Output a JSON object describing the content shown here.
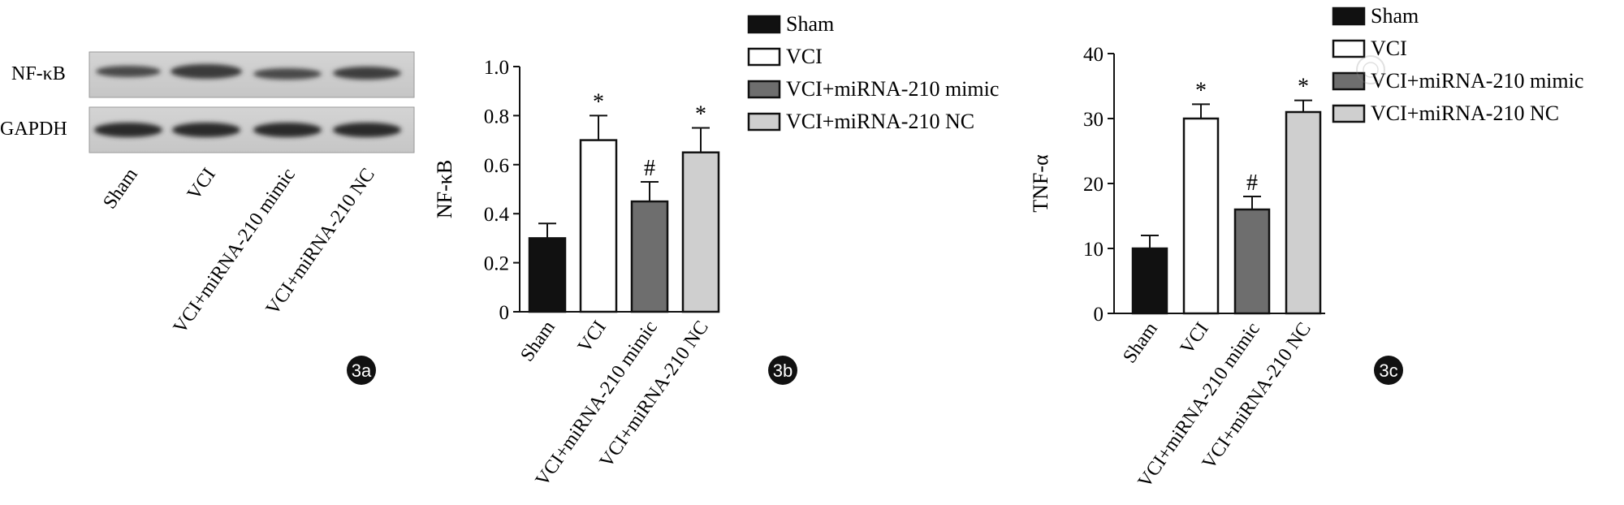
{
  "panel_a": {
    "badge": "3a",
    "rows": [
      "NF-κB",
      "GAPDH"
    ],
    "lanes": [
      "Sham",
      "VCI",
      "VCI+miRNA-210 mimic",
      "VCI+miRNA-210 NC"
    ]
  },
  "legend": {
    "entries": [
      {
        "name": "Sham",
        "fill": "#111111"
      },
      {
        "name": "VCI",
        "fill": "#ffffff"
      },
      {
        "name": "VCI+miRNA-210 mimic",
        "fill": "#6e6e6e"
      },
      {
        "name": "VCI+miRNA-210 NC",
        "fill": "#cfcfcf"
      }
    ]
  },
  "chart_data": [
    {
      "type": "bar",
      "panel": "3b",
      "badge": "3b",
      "title": "",
      "xlabel": "",
      "ylabel": "NF-κB",
      "categories": [
        "Sham",
        "VCI",
        "VCI+miRNA-210 mimic",
        "VCI+miRNA-210 NC"
      ],
      "values": [
        0.3,
        0.7,
        0.45,
        0.65
      ],
      "errors": [
        0.06,
        0.1,
        0.08,
        0.1
      ],
      "annotations": [
        "",
        "*",
        "#",
        "*"
      ],
      "colors": [
        "#111111",
        "#ffffff",
        "#6e6e6e",
        "#cfcfcf"
      ],
      "ylim": [
        0,
        1.0
      ],
      "yticks": [
        "0",
        "0.2",
        "0.4",
        "0.6",
        "0.8",
        "1.0"
      ],
      "legend": "top-right",
      "grid": false
    },
    {
      "type": "bar",
      "panel": "3c",
      "badge": "3c",
      "title": "",
      "xlabel": "",
      "ylabel": "TNF-α",
      "categories": [
        "Sham",
        "VCI",
        "VCI+miRNA-210 mimic",
        "VCI+miRNA-210 NC"
      ],
      "values": [
        10,
        30,
        16,
        31
      ],
      "errors": [
        2,
        2.2,
        2,
        1.8
      ],
      "annotations": [
        "",
        "*",
        "#",
        "*"
      ],
      "colors": [
        "#111111",
        "#ffffff",
        "#6e6e6e",
        "#cfcfcf"
      ],
      "ylim": [
        0,
        40
      ],
      "yticks": [
        "0",
        "10",
        "20",
        "30",
        "40"
      ],
      "legend": "top-right",
      "grid": false
    }
  ]
}
